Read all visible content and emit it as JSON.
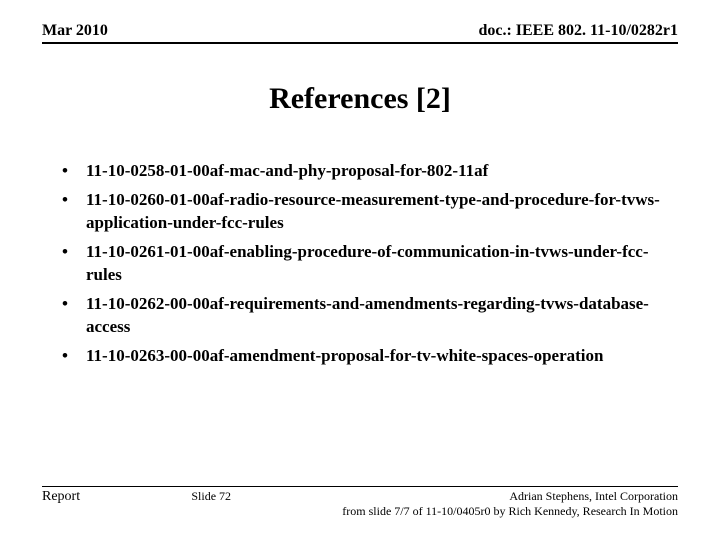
{
  "header": {
    "left": "Mar 2010",
    "right": "doc.: IEEE 802. 11-10/0282r1"
  },
  "title": "References [2]",
  "bullets": [
    "11-10-0258-01-00af-mac-and-phy-proposal-for-802-11af",
    "11-10-0260-01-00af-radio-resource-measurement-type-and-procedure-for-tvws-application-under-fcc-rules",
    "11-10-0261-01-00af-enabling-procedure-of-communication-in-tvws-under-fcc-rules",
    "11-10-0262-00-00af-requirements-and-amendments-regarding-tvws-database-access",
    "11-10-0263-00-00af-amendment-proposal-for-tv-white-spaces-operation"
  ],
  "footer": {
    "left": "Report",
    "center": "Slide 72",
    "right_line1": "Adrian Stephens, Intel Corporation",
    "right_line2": "from slide 7/7 of 11-10/0405r0 by Rich Kennedy, Research In Motion"
  },
  "colors": {
    "background": "#ffffff",
    "text": "#000000",
    "rule": "#000000"
  },
  "typography": {
    "header_fontsize": 16,
    "title_fontsize": 30,
    "bullet_fontsize": 17,
    "footer_left_fontsize": 14,
    "footer_small_fontsize": 12,
    "font_family": "Times New Roman"
  }
}
